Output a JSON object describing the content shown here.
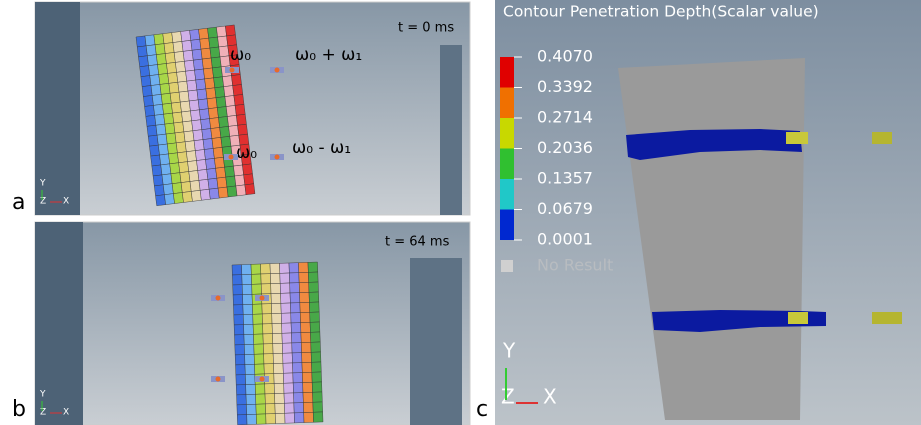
{
  "panels": [
    {
      "label": "a",
      "time": "t = 0 ms",
      "annotations": [
        "ω₀",
        "ω₀ + ω₁",
        "ω₀",
        "ω₀ - ω₁"
      ],
      "axes": {
        "y": "Y",
        "z": "Z",
        "x": "X"
      }
    },
    {
      "label": "b",
      "time": "t = 64 ms",
      "axes": {
        "y": "Y",
        "z": "Z",
        "x": "X"
      }
    },
    {
      "label": "c",
      "legend": {
        "title": "Contour Penetration Depth(Scalar value)",
        "values": [
          "0.4070",
          "0.3392",
          "0.2714",
          "0.2036",
          "0.1357",
          "0.0679",
          "0.0001"
        ],
        "no_result": "No Result"
      },
      "axes": {
        "y": "Y",
        "z": "Z",
        "x": "X"
      }
    }
  ]
}
